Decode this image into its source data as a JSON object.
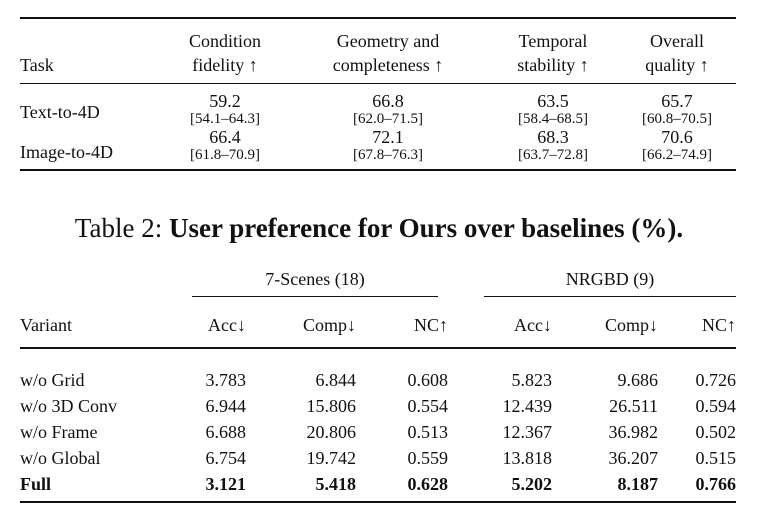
{
  "table1": {
    "headers": [
      "Task",
      "Condition\nfidelity ↑",
      "Geometry and\ncompleteness ↑",
      "Temporal\nstability ↑",
      "Overall\nquality ↑"
    ],
    "rows": [
      {
        "task": "Text-to-4D",
        "cells": [
          {
            "value": "59.2",
            "ci": "[54.1–64.3]"
          },
          {
            "value": "66.8",
            "ci": "[62.0–71.5]"
          },
          {
            "value": "63.5",
            "ci": "[58.4–68.5]"
          },
          {
            "value": "65.7",
            "ci": "[60.8–70.5]"
          }
        ]
      },
      {
        "task": "Image-to-4D",
        "cells": [
          {
            "value": "66.4",
            "ci": "[61.8–70.9]"
          },
          {
            "value": "72.1",
            "ci": "[67.8–76.3]"
          },
          {
            "value": "68.3",
            "ci": "[63.7–72.8]"
          },
          {
            "value": "70.6",
            "ci": "[66.2–74.9]"
          }
        ]
      }
    ]
  },
  "caption": {
    "prefix": "Table 2: ",
    "bold": "User preference for Ours over baselines (%)."
  },
  "table2": {
    "group_headers": [
      "7-Scenes (18)",
      "NRGBD (9)"
    ],
    "column_headers": [
      "Variant",
      "Acc↓",
      "Comp↓",
      "NC↑",
      "Acc↓",
      "Comp↓",
      "NC↑"
    ],
    "rows": [
      [
        "w/o Grid",
        "3.783",
        "6.844",
        "0.608",
        "5.823",
        "9.686",
        "0.726"
      ],
      [
        "w/o 3D Conv",
        "6.944",
        "15.806",
        "0.554",
        "12.439",
        "26.511",
        "0.594"
      ],
      [
        "w/o Frame",
        "6.688",
        "20.806",
        "0.513",
        "12.367",
        "36.982",
        "0.502"
      ],
      [
        "w/o Global",
        "6.754",
        "19.742",
        "0.559",
        "13.818",
        "36.207",
        "0.515"
      ],
      [
        "Full",
        "3.121",
        "5.418",
        "0.628",
        "5.202",
        "8.187",
        "0.766"
      ]
    ]
  }
}
